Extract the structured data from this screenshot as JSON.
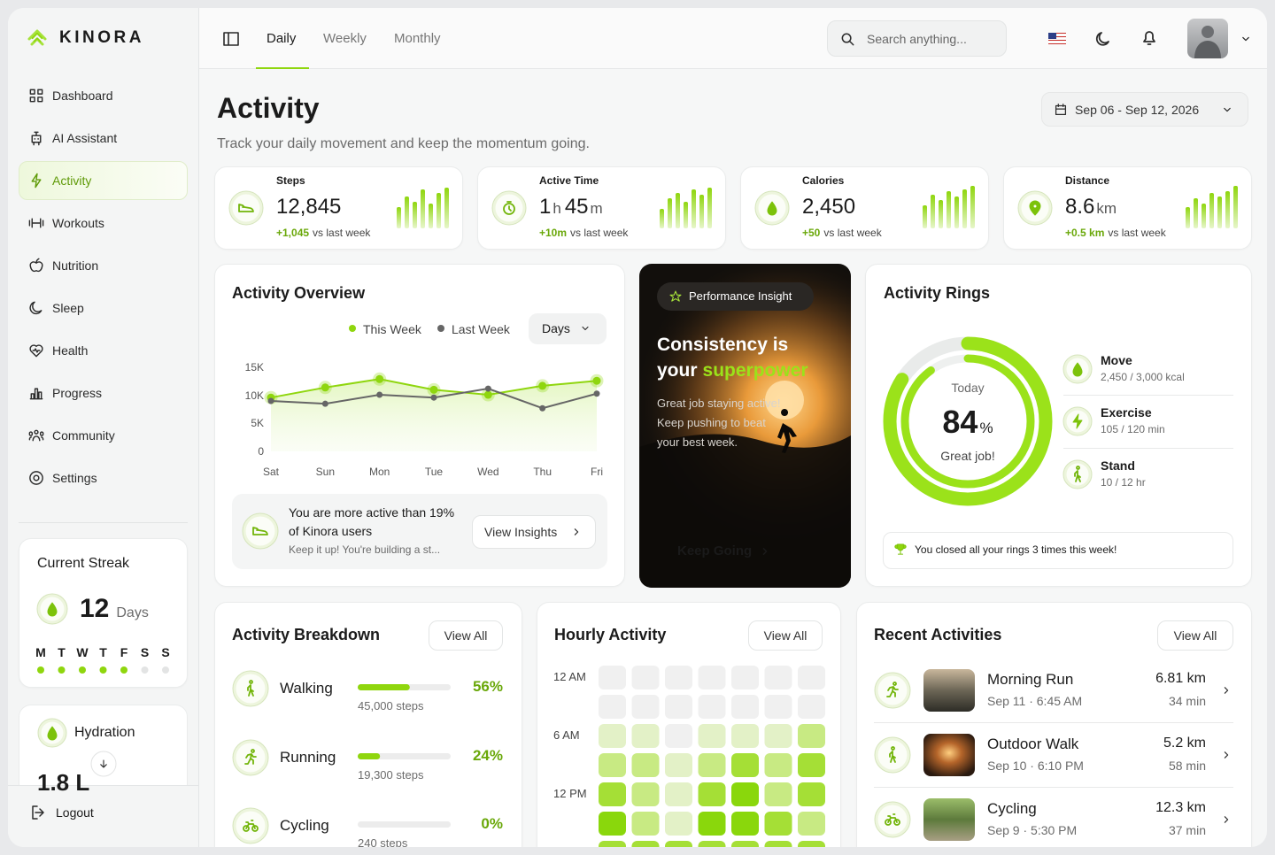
{
  "brand": "KINORA",
  "nav": [
    {
      "label": "Dashboard"
    },
    {
      "label": "AI Assistant"
    },
    {
      "label": "Activity",
      "active": true
    },
    {
      "label": "Workouts"
    },
    {
      "label": "Nutrition"
    },
    {
      "label": "Sleep"
    },
    {
      "label": "Health"
    },
    {
      "label": "Progress"
    },
    {
      "label": "Community"
    },
    {
      "label": "Settings"
    }
  ],
  "streak": {
    "title": "Current Streak",
    "value": 12,
    "unit": "Days",
    "days": [
      {
        "label": "M",
        "done": true
      },
      {
        "label": "T",
        "done": true
      },
      {
        "label": "W",
        "done": true
      },
      {
        "label": "T",
        "done": true
      },
      {
        "label": "F",
        "done": true
      },
      {
        "label": "S",
        "done": false
      },
      {
        "label": "S",
        "done": false
      }
    ]
  },
  "hydration": {
    "title": "Hydration",
    "amount": "1.8 L"
  },
  "logout": "Logout",
  "tabs": [
    {
      "label": "Daily",
      "active": true
    },
    {
      "label": "Weekly"
    },
    {
      "label": "Monthly"
    }
  ],
  "search_placeholder": "Search anything...",
  "page": {
    "title": "Activity",
    "subtitle": "Track your daily movement and keep the momentum going.",
    "date_range": "Sep 06 - Sep 12, 2026"
  },
  "stats": [
    {
      "label": "Steps",
      "value": [
        "12,845"
      ],
      "change": "+1,045",
      "compare": "vs last week",
      "bars": [
        24,
        36,
        30,
        44,
        28,
        40,
        46
      ]
    },
    {
      "label": "Active Time",
      "value": [
        "1",
        "h",
        "45",
        "m"
      ],
      "change": "+10m",
      "compare": "vs last week",
      "bars": [
        22,
        34,
        40,
        30,
        44,
        38,
        46
      ]
    },
    {
      "label": "Calories",
      "value": [
        "2,450"
      ],
      "change": "+50",
      "compare": "vs last week",
      "bars": [
        26,
        38,
        32,
        42,
        36,
        44,
        48
      ]
    },
    {
      "label": "Distance",
      "value": [
        "8.6",
        "km"
      ],
      "change": "+0.5 km",
      "compare": "vs last week",
      "bars": [
        24,
        34,
        28,
        40,
        36,
        42,
        48
      ]
    }
  ],
  "overview": {
    "title": "Activity Overview",
    "range": "Days",
    "insight": {
      "text": "You are more active than 19% of Kinora users",
      "sub": "Keep it up! You're building a st...",
      "button": "View Insights"
    }
  },
  "chart_data": {
    "type": "line",
    "categories": [
      "Sat",
      "Sun",
      "Mon",
      "Tue",
      "Wed",
      "Thu",
      "Fri"
    ],
    "series": [
      {
        "name": "This Week",
        "color": "#8fd60e",
        "values": [
          9600,
          11400,
          12900,
          11000,
          10100,
          11700,
          12600
        ]
      },
      {
        "name": "Last Week",
        "color": "#666666",
        "values": [
          9000,
          8500,
          10100,
          9600,
          11200,
          7700,
          10300
        ]
      }
    ],
    "ylim": [
      0,
      15000
    ],
    "yticks": [
      0,
      {
        "value": 5000,
        "label": "5K"
      },
      {
        "value": 10000,
        "label": "10K"
      },
      {
        "value": 15000,
        "label": "15K"
      }
    ]
  },
  "insight": {
    "badge": "Performance Insight",
    "headline": [
      "Consistency is",
      "your"
    ],
    "highlight": "superpower",
    "body": "Great job staying active! Keep pushing to beat your best week.",
    "button": "Keep Going"
  },
  "rings": {
    "title": "Activity Rings",
    "center_top": "Today",
    "percent": 84,
    "unit": "%",
    "inner_percent": 90,
    "caption": "Great job!",
    "items": [
      {
        "name": "Move",
        "detail": "2,450 / 3,000 kcal"
      },
      {
        "name": "Exercise",
        "detail": "105 / 120 min"
      },
      {
        "name": "Stand",
        "detail": "10 / 12 hr"
      }
    ],
    "footer": "You closed all your rings 3 times this week!"
  },
  "breakdown": {
    "title": "Activity Breakdown",
    "view_all": "View All",
    "items": [
      {
        "name": "Walking",
        "detail": "45,000 steps",
        "percent": 56,
        "percent_label": "56%"
      },
      {
        "name": "Running",
        "detail": "19,300 steps",
        "percent": 24,
        "percent_label": "24%"
      },
      {
        "name": "Cycling",
        "detail": "240 steps",
        "percent": 0,
        "percent_label": "0%"
      }
    ]
  },
  "hourly": {
    "title": "Hourly Activity",
    "view_all": "View All",
    "row_labels": [
      "12 AM",
      null,
      "6 AM",
      null,
      "12 PM",
      null,
      null
    ],
    "levels": [
      [
        0,
        0,
        0,
        0,
        0,
        0,
        0
      ],
      [
        0,
        0,
        0,
        0,
        0,
        0,
        0
      ],
      [
        1,
        1,
        0,
        1,
        1,
        1,
        2
      ],
      [
        2,
        2,
        1,
        2,
        3,
        2,
        3
      ],
      [
        3,
        2,
        1,
        3,
        4,
        2,
        3
      ],
      [
        4,
        2,
        1,
        4,
        4,
        3,
        2
      ],
      [
        3,
        3,
        3,
        3,
        3,
        3,
        3
      ]
    ]
  },
  "recent": {
    "title": "Recent Activities",
    "view_all": "View All",
    "items": [
      {
        "name": "Morning Run",
        "when": "Sep 11 · 6:45 AM",
        "distance": "6.81 km",
        "duration": "34 min"
      },
      {
        "name": "Outdoor Walk",
        "when": "Sep 10 · 6:10 PM",
        "distance": "5.2 km",
        "duration": "58 min"
      },
      {
        "name": "Cycling",
        "when": "Sep 9 · 5:30 PM",
        "distance": "12.3 km",
        "duration": "37 min"
      }
    ]
  }
}
